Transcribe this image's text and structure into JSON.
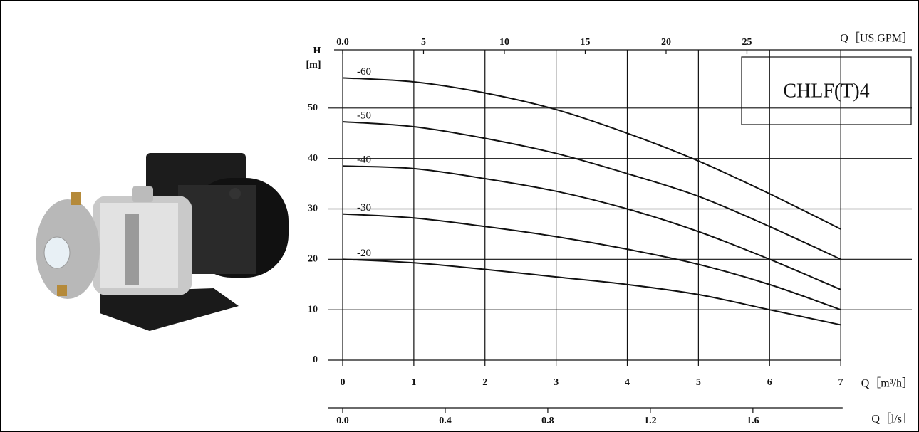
{
  "chart_data": {
    "type": "line",
    "title": "CHLF(T)4",
    "y_label": "H",
    "y_unit": "[m]",
    "x_label": "Q［m³/h］",
    "x2_label": "Q［US.GPM］",
    "x3_label": "Q［l/s］",
    "x": [
      0,
      1,
      2,
      3,
      4,
      5,
      6,
      7
    ],
    "series": [
      {
        "name": "-60",
        "color": "#111111",
        "values": [
          56,
          55.2,
          53,
          49.7,
          45,
          39.5,
          33,
          26
        ]
      },
      {
        "name": "-50",
        "color": "#111111",
        "values": [
          47.3,
          46.3,
          44,
          41,
          37,
          32.5,
          26.5,
          20
        ]
      },
      {
        "name": "-40",
        "color": "#111111",
        "values": [
          38.5,
          38,
          36,
          33.5,
          30,
          25.5,
          20,
          14
        ]
      },
      {
        "name": "-30",
        "color": "#111111",
        "values": [
          29,
          28.2,
          26.5,
          24.5,
          22,
          19,
          15,
          10
        ]
      },
      {
        "name": "-20",
        "color": "#111111",
        "values": [
          20,
          19.3,
          18,
          16.5,
          15,
          13,
          10,
          7
        ]
      }
    ],
    "xlim": [
      0,
      8
    ],
    "xticks": [
      0,
      1,
      2,
      3,
      4,
      5,
      6,
      7
    ],
    "ylim": [
      0,
      60
    ],
    "yticks": [
      0,
      10,
      20,
      30,
      40,
      50
    ],
    "x2lim": [
      0,
      35.2
    ],
    "x2ticks": [
      {
        "value": 0,
        "label": "0.0"
      },
      5,
      10,
      15,
      20,
      25
    ],
    "x3lim": [
      0,
      2.22
    ],
    "x3ticks": [
      {
        "value": 0,
        "label": "0.0"
      },
      0.4,
      0.8,
      1.2,
      1.6
    ],
    "grid": true
  }
}
